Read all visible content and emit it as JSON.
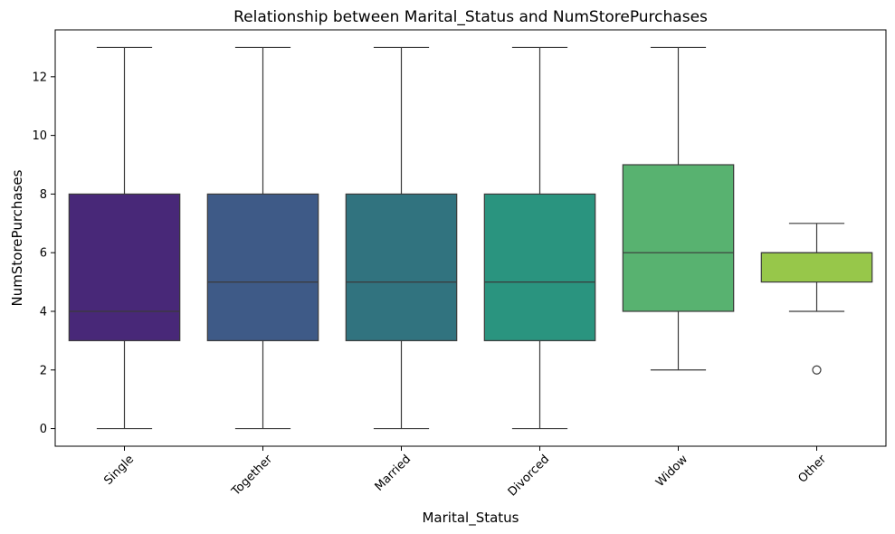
{
  "chart_data": {
    "type": "box",
    "title": "Relationship between Marital_Status and NumStorePurchases",
    "xlabel": "Marital_Status",
    "ylabel": "NumStorePurchases",
    "ylim": [
      -0.6,
      13.6
    ],
    "yticks": [
      0,
      2,
      4,
      6,
      8,
      10,
      12
    ],
    "grid": false,
    "categories": [
      "Single",
      "Together",
      "Married",
      "Divorced",
      "Widow",
      "Other"
    ],
    "boxes": [
      {
        "category": "Single",
        "whisker_low": 0,
        "q1": 3,
        "median": 4,
        "q3": 8,
        "whisker_high": 13,
        "outliers": [],
        "color": "#482878"
      },
      {
        "category": "Together",
        "whisker_low": 0,
        "q1": 3,
        "median": 5,
        "q3": 8,
        "whisker_high": 13,
        "outliers": [],
        "color": "#3e5a87"
      },
      {
        "category": "Married",
        "whisker_low": 0,
        "q1": 3,
        "median": 5,
        "q3": 8,
        "whisker_high": 13,
        "outliers": [],
        "color": "#31737f"
      },
      {
        "category": "Divorced",
        "whisker_low": 0,
        "q1": 3,
        "median": 5,
        "q3": 8,
        "whisker_high": 13,
        "outliers": [],
        "color": "#2a947f"
      },
      {
        "category": "Widow",
        "whisker_low": 2,
        "q1": 4,
        "median": 6,
        "q3": 9,
        "whisker_high": 13,
        "outliers": [],
        "color": "#58b270"
      },
      {
        "category": "Other",
        "whisker_low": 4,
        "q1": 5,
        "median": 6,
        "q3": 6,
        "whisker_high": 7,
        "outliers": [
          2
        ],
        "color": "#97c74a"
      }
    ]
  }
}
